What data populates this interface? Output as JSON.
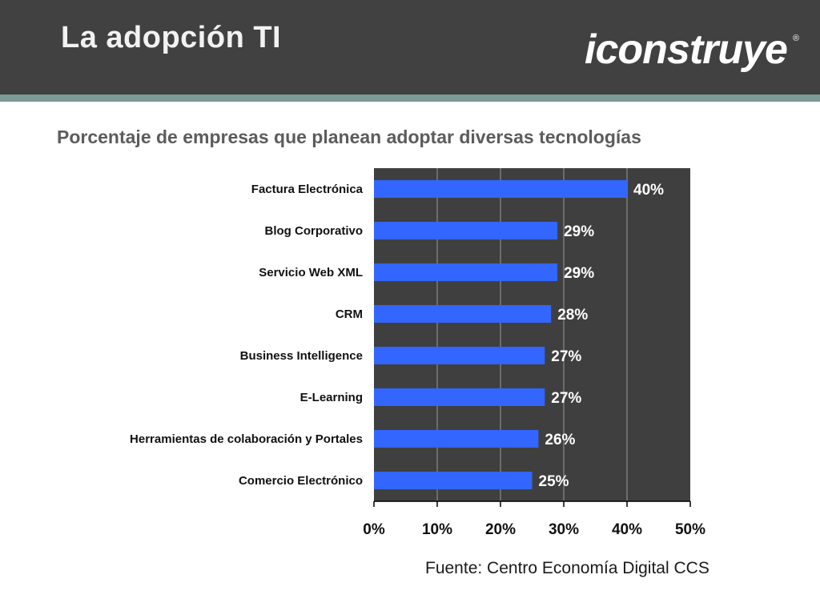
{
  "slide": {
    "title": "La adopción TI",
    "logo_text": "iconstruye",
    "logo_mark": "®",
    "subtitle": "Porcentaje de empresas que planean adoptar diversas tecnologías",
    "source": "Fuente: Centro Economía Digital CCS"
  },
  "colors": {
    "header_bg": "#414141",
    "header_stripe": "#7c9a96",
    "plot_bg": "#3f3f3f",
    "bar": "#3366ff",
    "label_on_plot": "#ffffff"
  },
  "chart_data": {
    "type": "bar",
    "orientation": "horizontal",
    "title": "Porcentaje de empresas que planean adoptar diversas tecnologías",
    "xlabel": "",
    "ylabel": "",
    "categories": [
      "Factura Electrónica",
      "Blog Corporativo",
      "Servicio Web XML",
      "CRM",
      "Business Intelligence",
      "E-Learning",
      "Herramientas de colaboración y Portales",
      "Comercio Electrónico"
    ],
    "values": [
      40,
      29,
      29,
      28,
      27,
      27,
      26,
      25
    ],
    "data_labels": [
      "40%",
      "29%",
      "29%",
      "28%",
      "27%",
      "27%",
      "26%",
      "25%"
    ],
    "xlim": [
      0,
      50
    ],
    "xticks": [
      "0%",
      "10%",
      "20%",
      "30%",
      "40%",
      "50%"
    ],
    "grid": true,
    "legend": "none"
  }
}
